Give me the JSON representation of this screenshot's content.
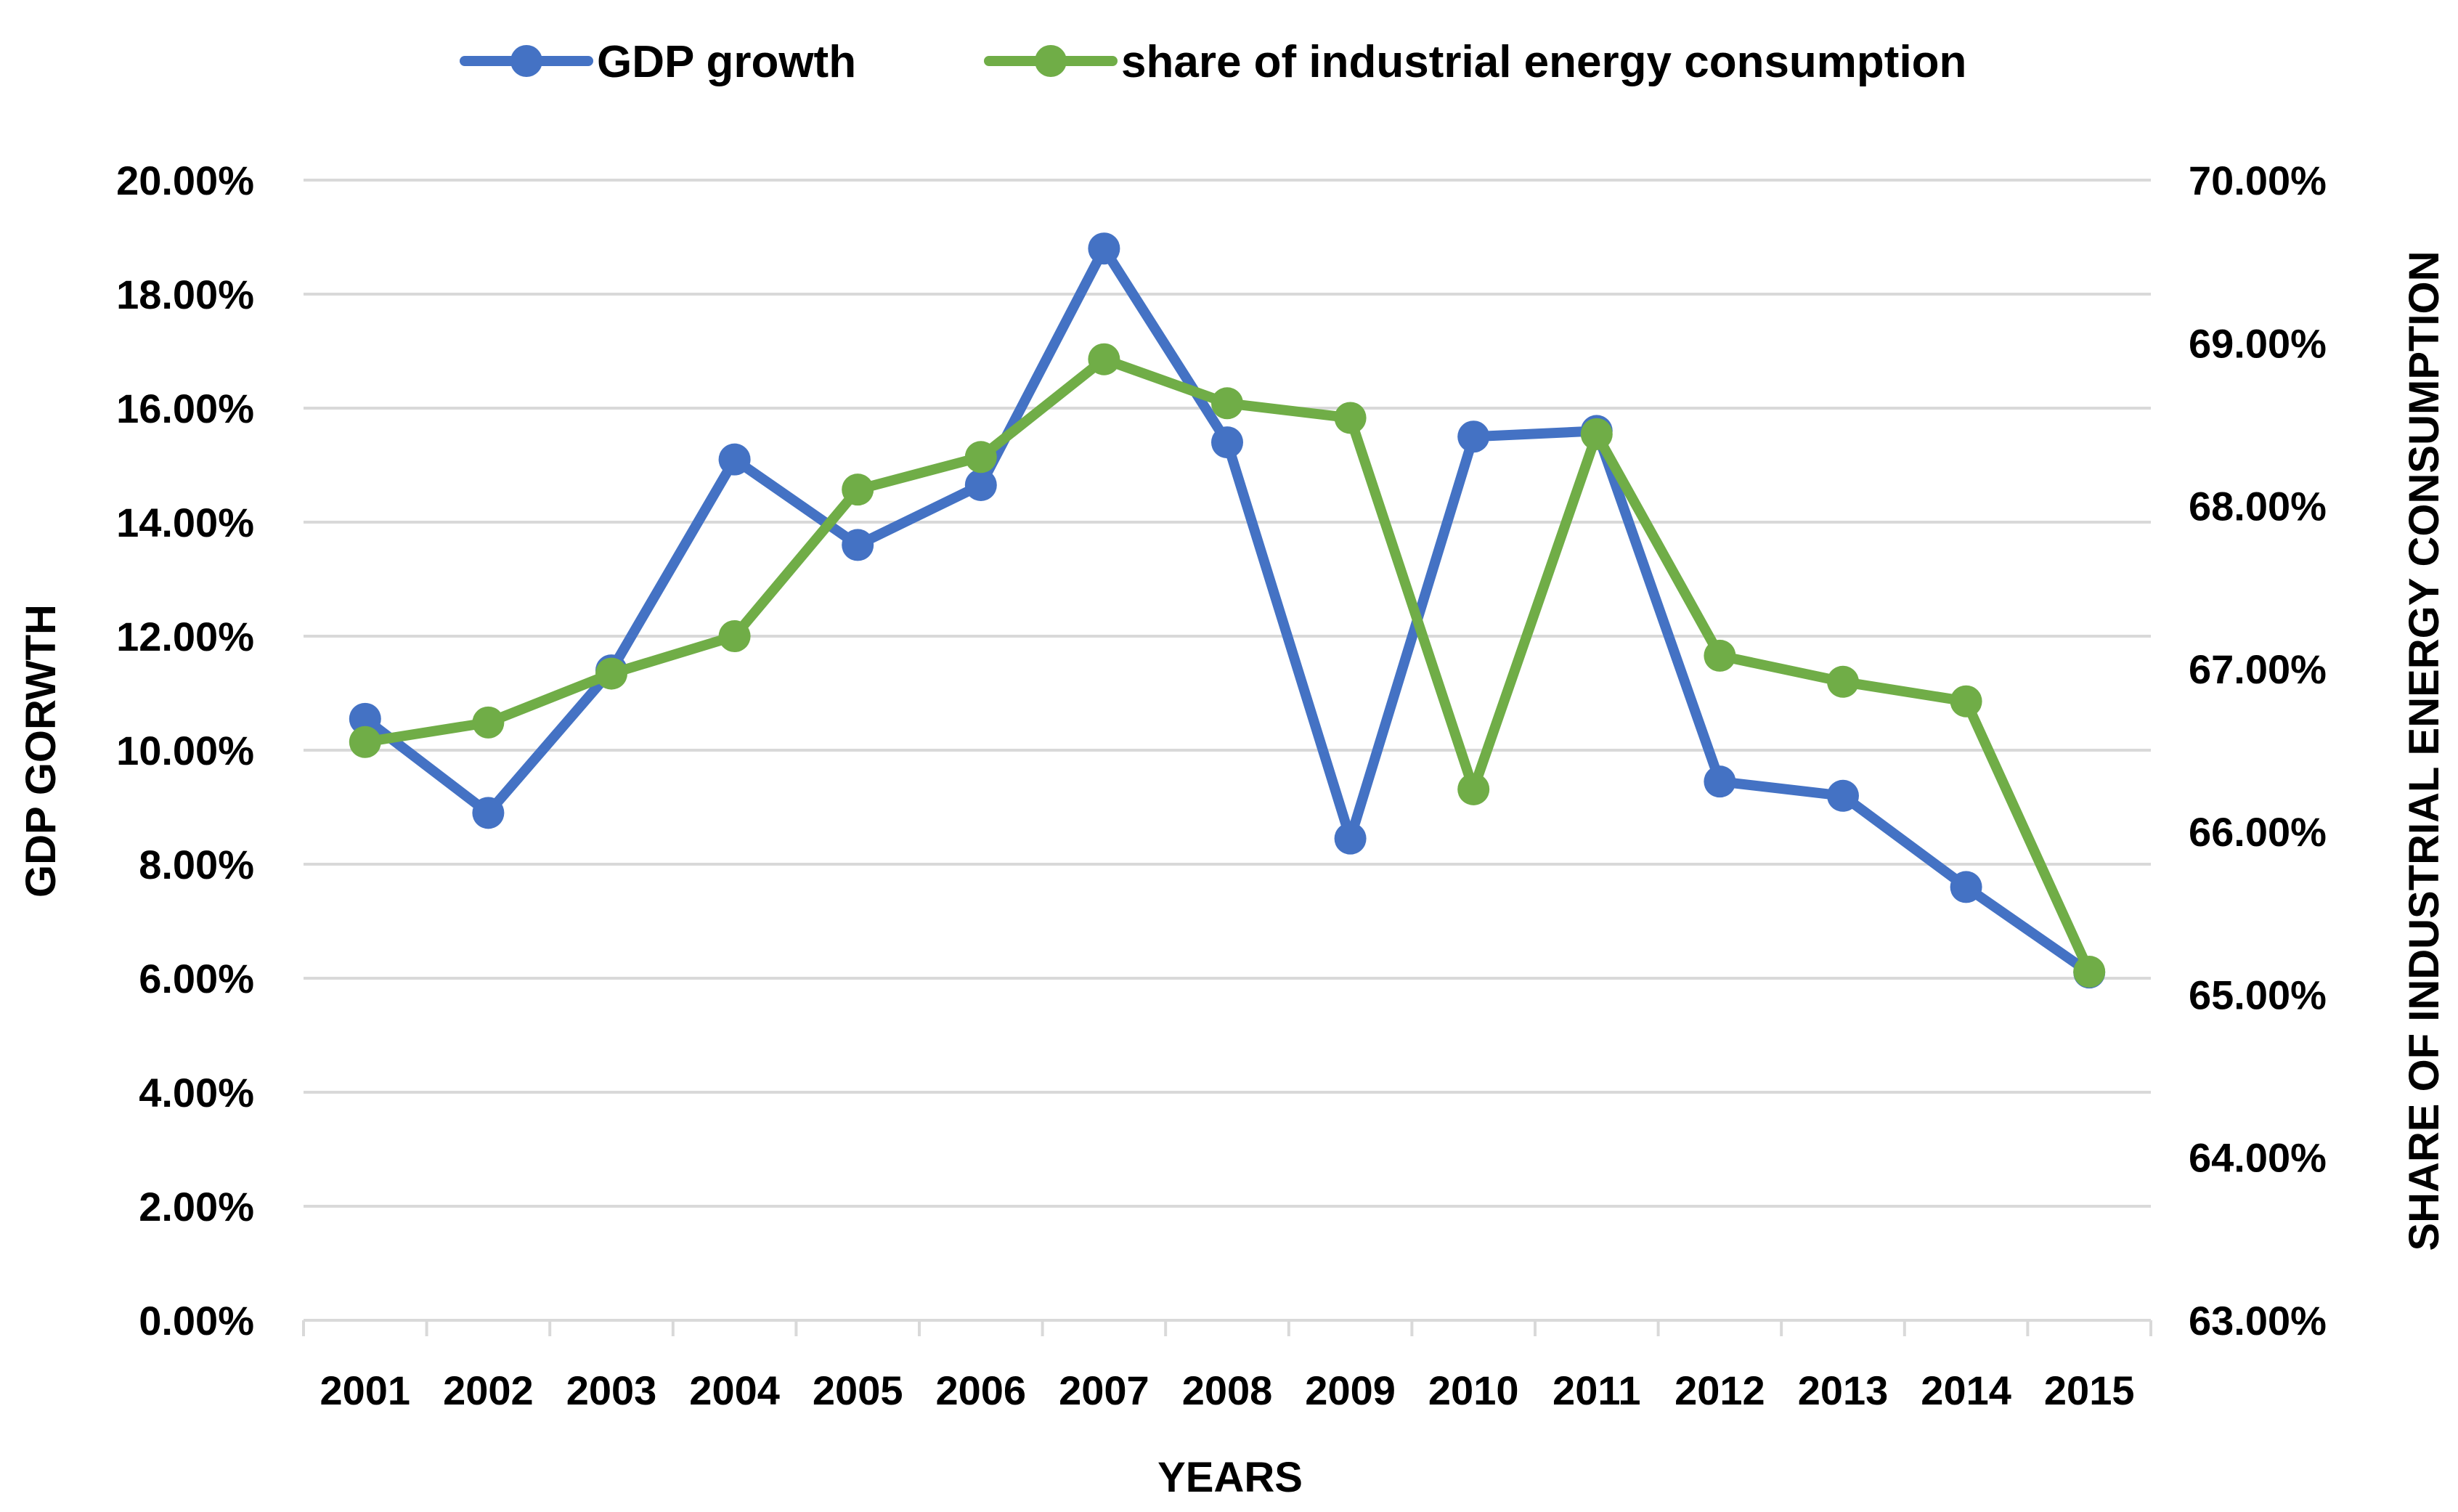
{
  "chart_data": {
    "type": "line",
    "categories": [
      "2001",
      "2002",
      "2003",
      "2004",
      "2005",
      "2006",
      "2007",
      "2008",
      "2009",
      "2010",
      "2011",
      "2012",
      "2013",
      "2014",
      "2015"
    ],
    "series": [
      {
        "name": "GDP growth",
        "axis": "left",
        "color": "#4472c4",
        "values": [
          10.55,
          8.9,
          11.4,
          15.1,
          13.6,
          14.65,
          18.8,
          15.4,
          8.45,
          15.5,
          15.6,
          9.45,
          9.2,
          7.6,
          6.1
        ]
      },
      {
        "name": "share of industrial energy consumption",
        "axis": "right",
        "color": "#70ad47",
        "values": [
          66.55,
          66.67,
          66.97,
          67.2,
          68.1,
          68.3,
          68.9,
          68.63,
          68.54,
          66.26,
          68.44,
          67.08,
          66.92,
          66.8,
          65.14
        ]
      }
    ],
    "xlabel": "YEARS",
    "ylabel": "GDP GORWTH",
    "y2label": "SHARE OF INDUSTRIAL ENERGY CONSUMPTION",
    "ylim": [
      0,
      20
    ],
    "yticks": [
      0,
      2,
      4,
      6,
      8,
      10,
      12,
      14,
      16,
      18,
      20
    ],
    "ytick_labels": [
      "0.00%",
      "2.00%",
      "4.00%",
      "6.00%",
      "8.00%",
      "10.00%",
      "12.00%",
      "14.00%",
      "16.00%",
      "18.00%",
      "20.00%"
    ],
    "y2lim": [
      63,
      70
    ],
    "y2ticks": [
      63,
      64,
      65,
      66,
      67,
      68,
      69,
      70
    ],
    "y2tick_labels": [
      "63.00%",
      "64.00%",
      "65.00%",
      "66.00%",
      "67.00%",
      "68.00%",
      "69.00%",
      "70.00%"
    ],
    "grid": true,
    "legend_position": "top-center"
  }
}
